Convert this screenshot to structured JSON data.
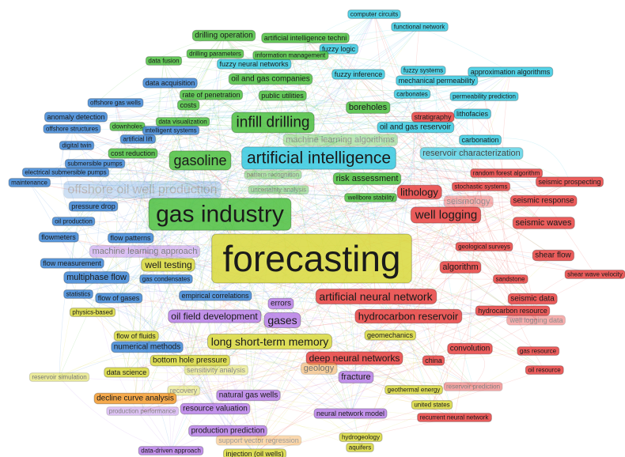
{
  "nodes": [
    {
      "label": "computer circuits",
      "color": "#36c9e0"
    },
    {
      "label": "functional network",
      "color": "#36c9e0"
    },
    {
      "label": "fuzzy logic",
      "color": "#36c9e0"
    },
    {
      "label": "fuzzy inference",
      "color": "#36c9e0"
    },
    {
      "label": "fuzzy systems",
      "color": "#36c9e0"
    },
    {
      "label": "approximation algorithms",
      "color": "#36c9e0"
    },
    {
      "label": "mechanical permeability",
      "color": "#36c9e0"
    },
    {
      "label": "carbonates",
      "color": "#36c9e0"
    },
    {
      "label": "permeability prediction",
      "color": "#36c9e0"
    },
    {
      "label": "lithofacies",
      "color": "#36c9e0"
    },
    {
      "label": "oil and gas reservoir",
      "color": "#36c9e0"
    },
    {
      "label": "carbonation",
      "color": "#36c9e0"
    },
    {
      "label": "reservoir characterization",
      "color": "#36c9e0"
    },
    {
      "label": "fuzzy neural networks",
      "color": "#36c9e0"
    },
    {
      "label": "artificial intelligence",
      "color": "#36c9e0"
    },
    {
      "label": "drilling operation",
      "color": "#4cbf3f"
    },
    {
      "label": "artificial intelligence techni",
      "color": "#4cbf3f"
    },
    {
      "label": "drilling parameters",
      "color": "#4cbf3f"
    },
    {
      "label": "information management",
      "color": "#4cbf3f"
    },
    {
      "label": "data fusion",
      "color": "#4cbf3f"
    },
    {
      "label": "oil and gas companies",
      "color": "#4cbf3f"
    },
    {
      "label": "rate of penetration",
      "color": "#4cbf3f"
    },
    {
      "label": "public utilities",
      "color": "#4cbf3f"
    },
    {
      "label": "costs",
      "color": "#4cbf3f"
    },
    {
      "label": "boreholes",
      "color": "#4cbf3f"
    },
    {
      "label": "data visualization",
      "color": "#4cbf3f"
    },
    {
      "label": "downholes",
      "color": "#4cbf3f"
    },
    {
      "label": "cost reduction",
      "color": "#4cbf3f"
    },
    {
      "label": "machine learning algorithms",
      "color": "#4cbf3f"
    },
    {
      "label": "pattern recognition",
      "color": "#4cbf3f"
    },
    {
      "label": "uncertainty analysis",
      "color": "#4cbf3f"
    },
    {
      "label": "risk assessment",
      "color": "#4cbf3f"
    },
    {
      "label": "wellbore stability",
      "color": "#4cbf3f"
    },
    {
      "label": "infill drilling",
      "color": "#4cbf3f"
    },
    {
      "label": "gasoline",
      "color": "#4cbf3f"
    },
    {
      "label": "gas industry",
      "color": "#4cbf3f"
    },
    {
      "label": "data acquisition",
      "color": "#3d86d6"
    },
    {
      "label": "offshore gas wells",
      "color": "#3d86d6"
    },
    {
      "label": "anomaly detection",
      "color": "#3d86d6"
    },
    {
      "label": "offshore structures",
      "color": "#3d86d6"
    },
    {
      "label": "intelligent systems",
      "color": "#3d86d6"
    },
    {
      "label": "artificial lift",
      "color": "#3d86d6"
    },
    {
      "label": "digital twin",
      "color": "#3d86d6"
    },
    {
      "label": "submersible pumps",
      "color": "#3d86d6"
    },
    {
      "label": "electrical submersible pumps",
      "color": "#3d86d6"
    },
    {
      "label": "maintenance",
      "color": "#3d86d6"
    },
    {
      "label": "offshore oil well production",
      "color": "#3d86d6"
    },
    {
      "label": "pressure drop",
      "color": "#3d86d6"
    },
    {
      "label": "oil production",
      "color": "#3d86d6"
    },
    {
      "label": "flowmeters",
      "color": "#3d86d6"
    },
    {
      "label": "flow patterns",
      "color": "#3d86d6"
    },
    {
      "label": "flow measurement",
      "color": "#3d86d6"
    },
    {
      "label": "multiphase flow",
      "color": "#3d86d6"
    },
    {
      "label": "gas condensates",
      "color": "#3d86d6"
    },
    {
      "label": "statistics",
      "color": "#3d86d6"
    },
    {
      "label": "flow of gases",
      "color": "#3d86d6"
    },
    {
      "label": "empirical correlations",
      "color": "#3d86d6"
    },
    {
      "label": "numerical methods",
      "color": "#3d86d6"
    },
    {
      "label": "stratigraphy",
      "color": "#e8413f"
    },
    {
      "label": "random forest algorithm",
      "color": "#e8413f"
    },
    {
      "label": "seismic prospecting",
      "color": "#e8413f"
    },
    {
      "label": "stochastic systems",
      "color": "#e8413f"
    },
    {
      "label": "lithology",
      "color": "#e8413f"
    },
    {
      "label": "seismology",
      "color": "#e8413f"
    },
    {
      "label": "seismic response",
      "color": "#e8413f"
    },
    {
      "label": "well logging",
      "color": "#e8413f"
    },
    {
      "label": "seismic waves",
      "color": "#e8413f"
    },
    {
      "label": "geological surveys",
      "color": "#e8413f"
    },
    {
      "label": "shear flow",
      "color": "#e8413f"
    },
    {
      "label": "algorithm",
      "color": "#e8413f"
    },
    {
      "label": "sandstone",
      "color": "#e8413f"
    },
    {
      "label": "shear wave velocity",
      "color": "#e8413f"
    },
    {
      "label": "artificial neural network",
      "color": "#e8413f"
    },
    {
      "label": "seismic data",
      "color": "#e8413f"
    },
    {
      "label": "hydrocarbon resource",
      "color": "#e8413f"
    },
    {
      "label": "hydrocarbon reservoir",
      "color": "#e8413f"
    },
    {
      "label": "well logging data",
      "color": "#e8413f"
    },
    {
      "label": "convolution",
      "color": "#e8413f"
    },
    {
      "label": "gas resource",
      "color": "#e8413f"
    },
    {
      "label": "deep neural networks",
      "color": "#e8413f"
    },
    {
      "label": "china",
      "color": "#e8413f"
    },
    {
      "label": "oil resource",
      "color": "#e8413f"
    },
    {
      "label": "reservoir prediction",
      "color": "#e8413f"
    },
    {
      "label": "recurrent neural network",
      "color": "#e8413f"
    },
    {
      "label": "well testing",
      "color": "#d8d83c"
    },
    {
      "label": "physics-based",
      "color": "#d8d83c"
    },
    {
      "label": "flow of fluids",
      "color": "#d8d83c"
    },
    {
      "label": "long short-term memory",
      "color": "#d8d83c"
    },
    {
      "label": "geomechanics",
      "color": "#d8d83c"
    },
    {
      "label": "bottom hole pressure",
      "color": "#d8d83c"
    },
    {
      "label": "data science",
      "color": "#d8d83c"
    },
    {
      "label": "sensitivity analysis",
      "color": "#d8d83c"
    },
    {
      "label": "geology",
      "color": "#f2a54a"
    },
    {
      "label": "geothermal energy",
      "color": "#d8d83c"
    },
    {
      "label": "united states",
      "color": "#d8d83c"
    },
    {
      "label": "hydrogeology",
      "color": "#d8d83c"
    },
    {
      "label": "aquifers",
      "color": "#d8d83c"
    },
    {
      "label": "recovery",
      "color": "#d8d83c"
    },
    {
      "label": "reservoir simulation",
      "color": "#d8d83c"
    },
    {
      "label": "injection (oil wells)",
      "color": "#d8d83c"
    },
    {
      "label": "forecasting",
      "color": "#d8d83c"
    },
    {
      "label": "machine learning approach",
      "color": "#b77fe8"
    },
    {
      "label": "errors",
      "color": "#b77fe8"
    },
    {
      "label": "oil field development",
      "color": "#b77fe8"
    },
    {
      "label": "gases",
      "color": "#b77fe8"
    },
    {
      "label": "fracture",
      "color": "#b77fe8"
    },
    {
      "label": "natural gas wells",
      "color": "#b77fe8"
    },
    {
      "label": "production performance",
      "color": "#b77fe8"
    },
    {
      "label": "resource valuation",
      "color": "#b77fe8"
    },
    {
      "label": "neural network model",
      "color": "#b77fe8"
    },
    {
      "label": "production prediction",
      "color": "#b77fe8"
    },
    {
      "label": "data-driven approach",
      "color": "#b77fe8"
    },
    {
      "label": "decline curve analysis",
      "color": "#f39a2d"
    },
    {
      "label": "support vector regression",
      "color": "#f39a2d"
    }
  ]
}
